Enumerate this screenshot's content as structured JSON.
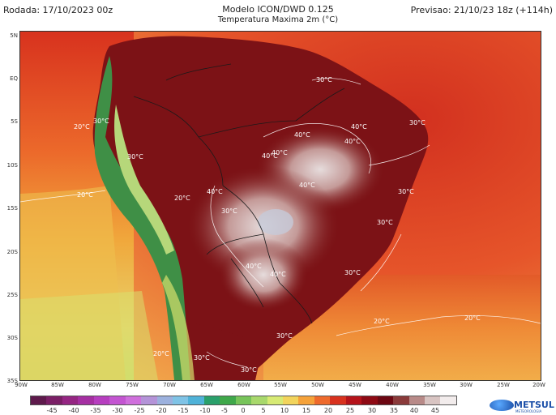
{
  "header": {
    "run": "Rodada: 17/10/2023 00z",
    "model": "Modelo ICON/DWD 0.125",
    "variable": "Temperatura Maxima 2m (°C)",
    "forecast": "Previsao: 21/10/23 18z (+114h)"
  },
  "map": {
    "lat_labels": [
      "5N",
      "EQ",
      "5S",
      "10S",
      "15S",
      "20S",
      "25S",
      "30S",
      "35S"
    ],
    "lon_labels": [
      "90W",
      "85W",
      "80W",
      "75W",
      "70W",
      "65W",
      "60W",
      "55W",
      "50W",
      "45W",
      "40W",
      "35W",
      "30W",
      "25W",
      "20W"
    ],
    "contours": [
      {
        "text": "20°C"
      },
      {
        "text": "20°C"
      },
      {
        "text": "20°C"
      },
      {
        "text": "20°C"
      },
      {
        "text": "20°C"
      },
      {
        "text": "20°C"
      },
      {
        "text": "30°C"
      },
      {
        "text": "30°C"
      },
      {
        "text": "30°C"
      },
      {
        "text": "30°C"
      },
      {
        "text": "30°C"
      },
      {
        "text": "30°C"
      },
      {
        "text": "30°C"
      },
      {
        "text": "30°C"
      },
      {
        "text": "30°C"
      },
      {
        "text": "30°C"
      },
      {
        "text": "30°C"
      },
      {
        "text": "40°C"
      },
      {
        "text": "40°C"
      },
      {
        "text": "40°C"
      },
      {
        "text": "40°C"
      },
      {
        "text": "40°C"
      },
      {
        "text": "40°C"
      },
      {
        "text": "40°C"
      },
      {
        "text": "40°C"
      },
      {
        "text": "40°C"
      }
    ]
  },
  "colorbar": {
    "labels": [
      "-45",
      "-40",
      "-35",
      "-30",
      "-25",
      "-20",
      "-15",
      "-10",
      "-5",
      "0",
      "5",
      "10",
      "15",
      "20",
      "25",
      "30",
      "35",
      "40",
      "45"
    ],
    "colors": [
      "#5e1a4c",
      "#7a1f66",
      "#952683",
      "#a52fa2",
      "#b63ebf",
      "#c355d1",
      "#cf6fdc",
      "#b493d8",
      "#9cb1de",
      "#7fc3e6",
      "#4fb2d8",
      "#2aa06b",
      "#3fa84a",
      "#77c45a",
      "#a8d86c",
      "#d7ea74",
      "#f2d45c",
      "#f5a23a",
      "#ee6a2c",
      "#d8321e",
      "#b5131a",
      "#8e0a14",
      "#6c0712",
      "#8a3a3a",
      "#b88a88",
      "#d8c4c2",
      "#f2ecec"
    ]
  },
  "logo": {
    "name": "METSUL",
    "sub": "METEOROLOGIA"
  }
}
